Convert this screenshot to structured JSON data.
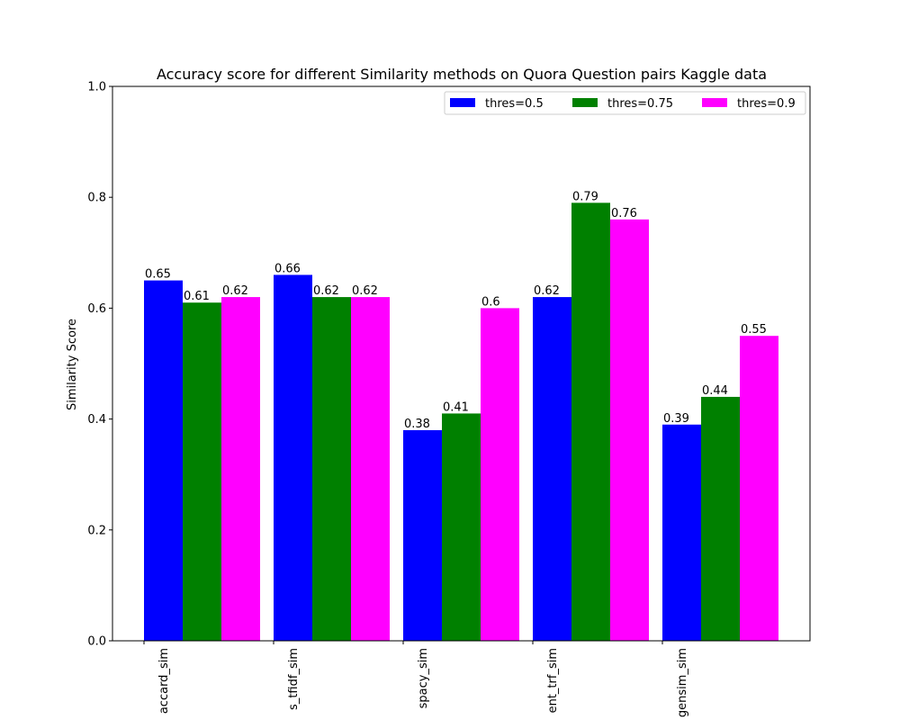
{
  "chart_data": {
    "type": "bar",
    "title": "Accuracy score for different Similarity methods on Quora Question pairs Kaggle data",
    "xlabel": "",
    "ylabel": "Similarity Score",
    "ylim": [
      0,
      1.0
    ],
    "yticks": [
      0.0,
      0.2,
      0.4,
      0.6,
      0.8,
      1.0
    ],
    "ytick_labels": [
      "0.0",
      "0.2",
      "0.4",
      "0.6",
      "0.8",
      "1.0"
    ],
    "categories": [
      "accard_sim",
      "s_tfidf_sim",
      "spacy_sim",
      "ent_trf_sim",
      "gensim_sim"
    ],
    "series": [
      {
        "name": "thres=0.5",
        "color": "#0000ff",
        "values": [
          0.65,
          0.66,
          0.38,
          0.62,
          0.39
        ],
        "labels": [
          "0.65",
          "0.66",
          "0.38",
          "0.62",
          "0.39"
        ]
      },
      {
        "name": "thres=0.75",
        "color": "#008000",
        "values": [
          0.61,
          0.62,
          0.41,
          0.79,
          0.44
        ],
        "labels": [
          "0.61",
          "0.62",
          "0.41",
          "0.79",
          "0.44"
        ]
      },
      {
        "name": "thres=0.9",
        "color": "#ff00ff",
        "values": [
          0.62,
          0.62,
          0.6,
          0.76,
          0.55
        ],
        "labels": [
          "0.62",
          "0.62",
          "0.6",
          "0.76",
          "0.55"
        ]
      }
    ],
    "legend": {
      "position": "top-right",
      "columns": 3
    },
    "grid": false
  }
}
